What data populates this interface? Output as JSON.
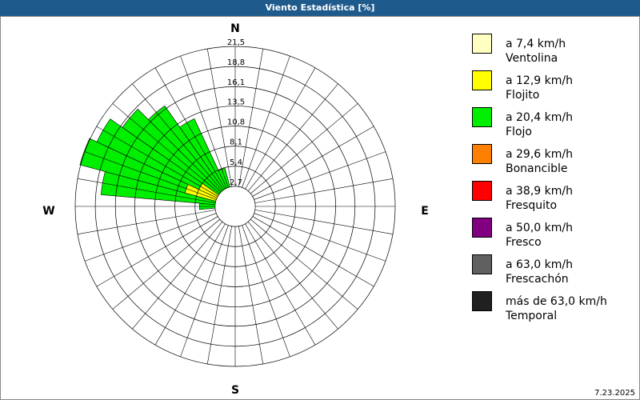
{
  "window_title": "Viento Estadística [%]",
  "footer_date": "7.23.2025",
  "chart_data": {
    "type": "windrose",
    "compass": [
      "N",
      "E",
      "S",
      "W"
    ],
    "x": [
      270,
      280,
      290,
      300,
      310,
      320,
      330,
      340
    ],
    "rlim": [
      0,
      21.5
    ],
    "rticks": [
      {
        "value": 2.7,
        "label": "2,7"
      },
      {
        "value": 5.4,
        "label": "5,4"
      },
      {
        "value": 8.1,
        "label": "8,1"
      },
      {
        "value": 10.8,
        "label": "10,8"
      },
      {
        "value": 13.5,
        "label": "13,5"
      },
      {
        "value": 16.1,
        "label": "16,1"
      },
      {
        "value": 18.8,
        "label": "18,8"
      },
      {
        "value": 21.5,
        "label": "21,5"
      }
    ],
    "series": [
      {
        "name": "Ventolina",
        "range": "a 7,4 km/h",
        "color": "#ffffc0",
        "values": [
          0,
          0,
          0,
          0,
          0,
          0,
          0,
          0
        ]
      },
      {
        "name": "Flojito",
        "range": "a 12,9 km/h",
        "color": "#ffff00",
        "values": [
          2.5,
          1.0,
          7.0,
          5.4,
          0,
          0,
          0,
          0
        ]
      },
      {
        "name": "Flojo",
        "range": "a 20,4 km/h",
        "color": "#00ee00",
        "values": [
          2.3,
          17.1,
          14.6,
          15.1,
          18.5,
          16.5,
          13.0,
          5.3
        ]
      },
      {
        "name": "Bonancible",
        "range": "a 29,6 km/h",
        "color": "#ff8000",
        "values": [
          0,
          0,
          0,
          0,
          0,
          0,
          0,
          0
        ]
      },
      {
        "name": "Fresquito",
        "range": "a 38,9 km/h",
        "color": "#ff0000",
        "values": [
          0,
          0,
          0,
          0,
          0,
          0,
          0,
          0
        ]
      },
      {
        "name": "Fresco",
        "range": "a 50,0 km/h",
        "color": "#800080",
        "values": [
          0,
          0,
          0,
          0,
          0,
          0,
          0,
          0
        ]
      },
      {
        "name": "Frescachón",
        "range": "a 63,0 km/h",
        "color": "#606060",
        "values": [
          0,
          0,
          0,
          0,
          0,
          0,
          0,
          0
        ]
      },
      {
        "name": "Temporal",
        "range": "más de 63,0 km/h",
        "color": "#202020",
        "values": [
          0,
          0,
          0,
          0,
          0,
          0,
          0,
          0
        ]
      }
    ],
    "sector_width": 10
  }
}
